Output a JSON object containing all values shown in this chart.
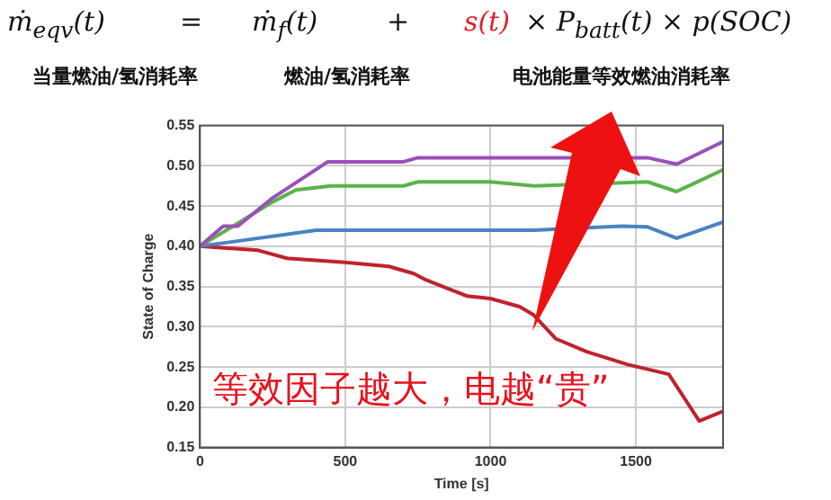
{
  "chart_data": {
    "type": "line",
    "annotations": [
      "ṁ$_{eqv}$(t)",
      "=",
      "ṁ$_{f}$(t)",
      "+",
      "s(t)",
      "× P$_{batt}$(t) × p(SOC)",
      "当量燃油/氢消耗率",
      "燃油/氢消耗率",
      "电池能量等效燃油消耗率",
      "等效因子越大，电越“贵”"
    ],
    "xlabel": "Time [s]",
    "ylabel": "State of Charge",
    "xlim": [
      0,
      1800
    ],
    "xticks": [
      0,
      500,
      1000,
      1500
    ],
    "ylim": [
      0.15,
      0.55
    ],
    "yticks": [
      0.15,
      {
        "value": 0.2,
        "label": "0.20"
      },
      0.25,
      {
        "value": 0.3,
        "label": "0.30"
      },
      0.35,
      {
        "value": 0.4,
        "label": "0.40"
      },
      0.45,
      {
        "value": 0.5,
        "label": "0.50"
      },
      0.55
    ],
    "grid": true,
    "marker": "none",
    "line_style": "solid",
    "series": [
      {
        "color": "#9b4fb8",
        "x": [
          0,
          80,
          130,
          250,
          440,
          700,
          750,
          1000,
          1200,
          1540,
          1640,
          1800
        ],
        "values": [
          0.4,
          0.425,
          0.425,
          0.46,
          0.505,
          0.505,
          0.51,
          0.51,
          0.51,
          0.51,
          0.502,
          0.53
        ]
      },
      {
        "color": "#5db34a",
        "x": [
          0,
          250,
          330,
          450,
          700,
          750,
          1000,
          1150,
          1540,
          1640,
          1800
        ],
        "values": [
          0.4,
          0.455,
          0.47,
          0.475,
          0.475,
          0.48,
          0.48,
          0.475,
          0.48,
          0.468,
          0.495
        ]
      },
      {
        "color": "#4a82c4",
        "x": [
          0,
          100,
          300,
          400,
          700,
          1000,
          1150,
          1450,
          1540,
          1640,
          1800
        ],
        "values": [
          0.4,
          0.405,
          0.415,
          0.42,
          0.42,
          0.42,
          0.42,
          0.425,
          0.424,
          0.41,
          0.43
        ]
      },
      {
        "color": "#c0222c",
        "x": [
          0,
          200,
          300,
          500,
          650,
          736,
          779,
          920,
          1000,
          1100,
          1147,
          1225,
          1331,
          1472,
          1613,
          1718,
          1800
        ],
        "values": [
          0.4,
          0.395,
          0.385,
          0.38,
          0.375,
          0.366,
          0.358,
          0.338,
          0.335,
          0.325,
          0.315,
          0.285,
          0.269,
          0.253,
          0.241,
          0.183,
          0.195
        ]
      }
    ]
  }
}
